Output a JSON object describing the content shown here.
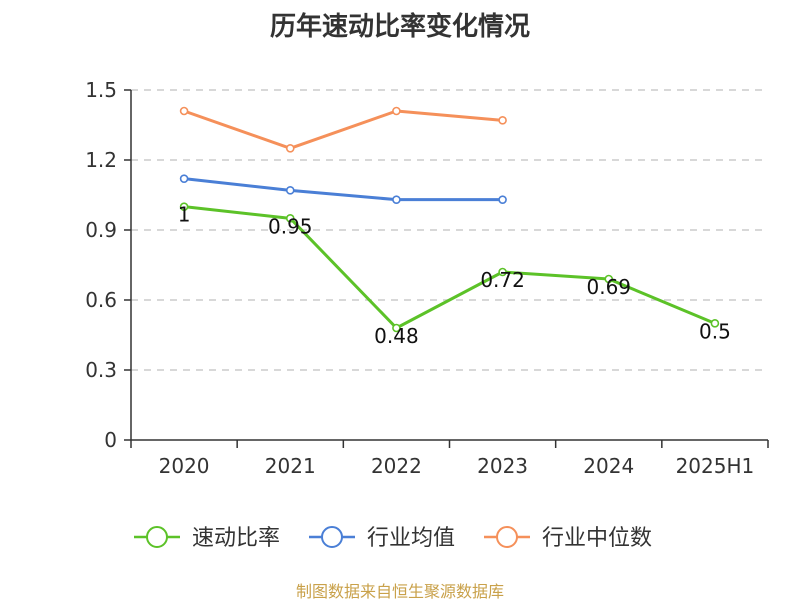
{
  "chart_data": {
    "type": "line",
    "title": "历年速动比率变化情况",
    "categories": [
      "2020",
      "2021",
      "2022",
      "2023",
      "2024",
      "2025H1"
    ],
    "ylim": [
      0,
      1.5
    ],
    "yticks": [
      "0",
      "0.3",
      "0.6",
      "0.9",
      "1.2",
      "1.5"
    ],
    "grid": true,
    "legend_position": "bottom",
    "series": [
      {
        "name": "速动比率",
        "color": "#5cc228",
        "values": [
          1,
          0.95,
          0.48,
          0.72,
          0.69,
          0.5
        ],
        "labels": [
          "1",
          "0.95",
          "0.48",
          "0.72",
          "0.69",
          "0.5"
        ]
      },
      {
        "name": "行业均值",
        "color": "#4a7fd6",
        "values": [
          1.12,
          1.07,
          1.03,
          1.03,
          null,
          null
        ]
      },
      {
        "name": "行业中位数",
        "color": "#f5905a",
        "values": [
          1.41,
          1.25,
          1.41,
          1.37,
          null,
          null
        ]
      }
    ]
  },
  "source_note": "制图数据来自恒生聚源数据库"
}
